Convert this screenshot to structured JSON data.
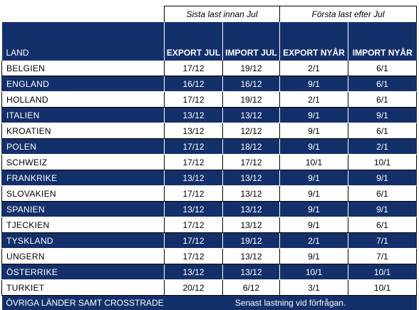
{
  "groups": {
    "last_before": "Sista last innan Jul",
    "first_after": "Första last efter Jul"
  },
  "columns": {
    "land": "LAND",
    "export_jul": "EXPORT JUL",
    "import_jul": "IMPORT JUL",
    "export_nyar": "EXPORT NYÅR",
    "import_nyar": "IMPORT NYÅR"
  },
  "rows": [
    {
      "land": "BELGIEN",
      "export_jul": "17/12",
      "import_jul": "19/12",
      "export_nyar": "2/1",
      "import_nyar": "6/1"
    },
    {
      "land": "ENGLAND",
      "export_jul": "16/12",
      "import_jul": "16/12",
      "export_nyar": "9/1",
      "import_nyar": "6/1"
    },
    {
      "land": "HOLLAND",
      "export_jul": "17/12",
      "import_jul": "19/12",
      "export_nyar": "2/1",
      "import_nyar": "6/1"
    },
    {
      "land": "ITALIEN",
      "export_jul": "13/12",
      "import_jul": "13/12",
      "export_nyar": "9/1",
      "import_nyar": "9/1"
    },
    {
      "land": "KROATIEN",
      "export_jul": "13/12",
      "import_jul": "12/12",
      "export_nyar": "9/1",
      "import_nyar": "6/1"
    },
    {
      "land": "POLEN",
      "export_jul": "17/12",
      "import_jul": "18/12",
      "export_nyar": "9/1",
      "import_nyar": "2/1"
    },
    {
      "land": "SCHWEIZ",
      "export_jul": "17/12",
      "import_jul": "17/12",
      "export_nyar": "10/1",
      "import_nyar": "10/1"
    },
    {
      "land": "FRANKRIKE",
      "export_jul": "13/12",
      "import_jul": "13/12",
      "export_nyar": "9/1",
      "import_nyar": "9/1"
    },
    {
      "land": "SLOVAKIEN",
      "export_jul": "17/12",
      "import_jul": "13/12",
      "export_nyar": "9/1",
      "import_nyar": "6/1"
    },
    {
      "land": "SPANIEN",
      "export_jul": "13/12",
      "import_jul": "13/12",
      "export_nyar": "9/1",
      "import_nyar": "9/1"
    },
    {
      "land": "TJECKIEN",
      "export_jul": "17/12",
      "import_jul": "13/12",
      "export_nyar": "9/1",
      "import_nyar": "6/1"
    },
    {
      "land": "TYSKLAND",
      "export_jul": "17/12",
      "import_jul": "19/12",
      "export_nyar": "2/1",
      "import_nyar": "7/1"
    },
    {
      "land": "UNGERN",
      "export_jul": "17/12",
      "import_jul": "13/12",
      "export_nyar": "9/1",
      "import_nyar": "7/1"
    },
    {
      "land": "ÖSTERRIKE",
      "export_jul": "13/12",
      "import_jul": "13/12",
      "export_nyar": "10/1",
      "import_nyar": "10/1"
    },
    {
      "land": "TURKIET",
      "export_jul": "20/12",
      "import_jul": "6/12",
      "export_nyar": "3/1",
      "import_nyar": "10/1"
    }
  ],
  "footer": {
    "land": "ÖVRIGA LÄNDER SAMT CROSSTRADE",
    "note": "Senast lastning vid förfrågan."
  },
  "colors": {
    "header_bg": "#14306b",
    "header_text": "#ffffff"
  }
}
